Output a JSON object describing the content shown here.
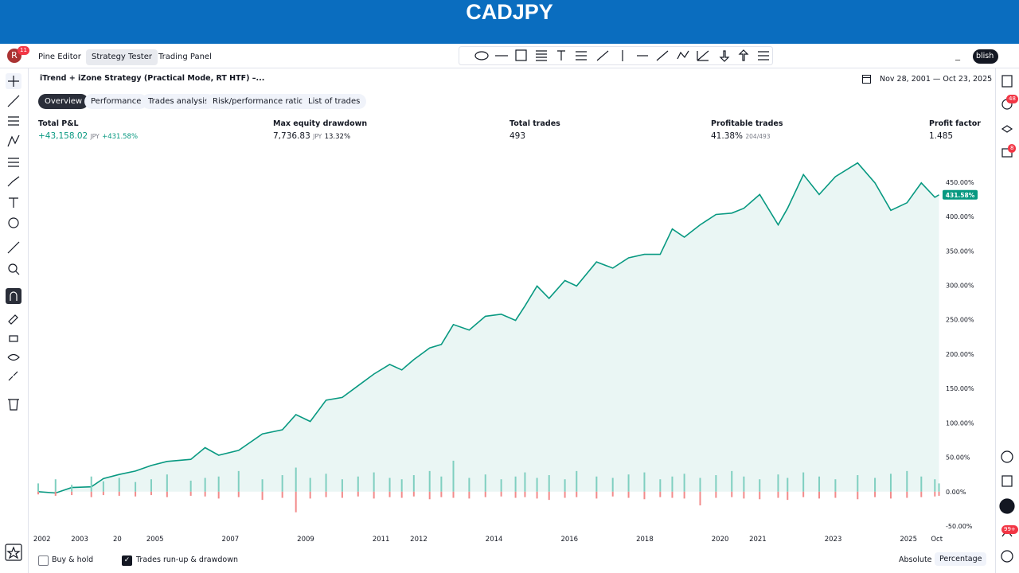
{
  "header": {
    "title": "CADJPY"
  },
  "avatar": {
    "letter": "R",
    "badge": "11"
  },
  "tabs": [
    "Pine Editor",
    "Strategy Tester",
    "Trading Panel"
  ],
  "publish": "blish",
  "strategy": {
    "name": "iTrend + iZone Strategy (Practical Mode, RT HTF) –..."
  },
  "date_range": "Nov 28, 2001 — Oct 23, 2025",
  "subtabs": [
    "Overview",
    "Performance",
    "Trades analysis",
    "Risk/performance ratios",
    "List of trades"
  ],
  "metrics": [
    {
      "label": "Total P&L",
      "value": "+43,158.02",
      "unit": "JPY",
      "extra": "+431.58%"
    },
    {
      "label": "Max equity drawdown",
      "value": "7,736.83",
      "unit": "JPY",
      "extra": "13.32%"
    },
    {
      "label": "Total trades",
      "value": "493"
    },
    {
      "label": "Profitable trades",
      "value": "41.38%",
      "extra": "204/493"
    },
    {
      "label": "Profit factor",
      "value": "1.485"
    }
  ],
  "badges": [
    "48",
    "8",
    "99+"
  ],
  "footer": {
    "buy_hold": "Buy & hold",
    "runup": "Trades run-up & drawdown",
    "absolute": "Absolute",
    "percentage": "Percentage"
  },
  "chart_data": {
    "type": "line",
    "x": [
      2001.9,
      2002.36,
      2002.79,
      2003.31,
      2003.63,
      2004.05,
      2004.48,
      2004.9,
      2005.32,
      2005.95,
      2006.33,
      2006.69,
      2007.22,
      2007.85,
      2008.38,
      2008.74,
      2009.12,
      2009.54,
      2009.97,
      2010.39,
      2010.81,
      2011.23,
      2011.55,
      2011.87,
      2012.29,
      2012.6,
      2012.92,
      2013.34,
      2013.77,
      2014.19,
      2014.57,
      2014.82,
      2015.14,
      2015.46,
      2015.88,
      2016.19,
      2016.72,
      2017.15,
      2017.57,
      2017.99,
      2018.41,
      2018.73,
      2019.05,
      2019.47,
      2019.89,
      2020.31,
      2020.63,
      2021.05,
      2021.54,
      2021.79,
      2022.21,
      2022.63,
      2023.06,
      2023.65,
      2024.11,
      2024.53,
      2024.96,
      2025.34,
      2025.7,
      2025.81
    ],
    "series": [
      {
        "type": "line",
        "color": "#089981",
        "values": [
          0,
          -2,
          6,
          7,
          19,
          25,
          30,
          38,
          44,
          47,
          64,
          53,
          60,
          84,
          90,
          112,
          102,
          133,
          137,
          154,
          171,
          185,
          177,
          192,
          209,
          214,
          243,
          235,
          255,
          258,
          249,
          270,
          299,
          281,
          307,
          299,
          334,
          325,
          340,
          345,
          345,
          382,
          370,
          388,
          403,
          405,
          412,
          432,
          388,
          412,
          461,
          432,
          458,
          478,
          449,
          409,
          420,
          449,
          428,
          431.58
        ]
      },
      {
        "type": "bar",
        "color": "#7fcfc0",
        "values": [
          12,
          18,
          10,
          22,
          15,
          20,
          14,
          18,
          25,
          16,
          20,
          22,
          30,
          18,
          24,
          35,
          20,
          26,
          18,
          22,
          28,
          20,
          18,
          24,
          30,
          22,
          45,
          20,
          25,
          18,
          22,
          28,
          20,
          24,
          18,
          30,
          22,
          20,
          25,
          28,
          18,
          22,
          26,
          20,
          24,
          30,
          22,
          18,
          25,
          20,
          28,
          22,
          18,
          24,
          20,
          26,
          30,
          22,
          18,
          12
        ]
      },
      {
        "type": "bar",
        "color": "#f28b8b",
        "values": [
          -4,
          -6,
          -5,
          -8,
          -5,
          -6,
          -7,
          -5,
          -8,
          -6,
          -7,
          -10,
          -8,
          -12,
          -9,
          -30,
          -10,
          -8,
          -9,
          -7,
          -10,
          -8,
          -9,
          -7,
          -11,
          -8,
          -9,
          -10,
          -8,
          -7,
          -9,
          -8,
          -10,
          -12,
          -9,
          -8,
          -10,
          -7,
          -9,
          -11,
          -8,
          -9,
          -10,
          -20,
          -9,
          -8,
          -10,
          -11,
          -9,
          -12,
          -8,
          -10,
          -9,
          -11,
          -8,
          -10,
          -9,
          -8,
          -7,
          -6
        ]
      }
    ],
    "last_value_label": "431.58%",
    "xlim": [
      2001.9,
      2025.82
    ],
    "xticks": [
      2002,
      2003,
      {
        "value": 2004,
        "label": "20"
      },
      2005,
      2007,
      2009,
      2011,
      2012,
      2014,
      2016,
      2018,
      2020,
      2021,
      2023,
      2025,
      {
        "value": 2025.75,
        "label": "Oct"
      }
    ],
    "ylim": [
      -72,
      495
    ],
    "yticks": [
      {
        "value": -50,
        "label": "-50.00%"
      },
      {
        "value": 0,
        "label": "0.00%"
      },
      {
        "value": 50,
        "label": "50.00%"
      },
      {
        "value": 100,
        "label": "100.00%"
      },
      {
        "value": 150,
        "label": "150.00%"
      },
      {
        "value": 200,
        "label": "200.00%"
      },
      {
        "value": 250,
        "label": "250.00%"
      },
      {
        "value": 300,
        "label": "300.00%"
      },
      {
        "value": 350,
        "label": "350.00%"
      },
      {
        "value": 400,
        "label": "400.00%"
      },
      {
        "value": 450,
        "label": "450.00%"
      }
    ],
    "area_color": "#eaf6f4"
  }
}
